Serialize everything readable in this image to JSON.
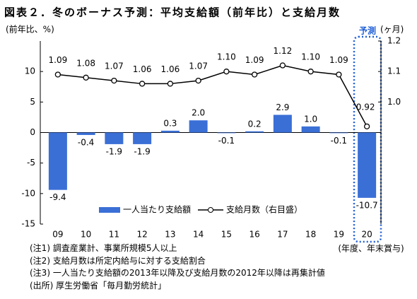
{
  "chart_data": {
    "type": "bar_line",
    "title": "図表２．冬のボーナス予測：平均支給額（前年比）と支給月数",
    "y_label": "(前年比、%)",
    "y2_label": "(ヶ月)",
    "annotations": [
      "予測",
      "(年度、年末賞与)"
    ],
    "categories": [
      "09",
      "10",
      "11",
      "12",
      "13",
      "14",
      "15",
      "16",
      "17",
      "18",
      "19",
      "20"
    ],
    "series": [
      {
        "name": "一人当たり支給額",
        "type": "bar",
        "color": "#3a6fd6",
        "values": [
          -9.4,
          -0.4,
          -1.9,
          -1.9,
          0.3,
          2.0,
          -0.1,
          0.2,
          2.9,
          1.0,
          -0.1,
          -10.7
        ],
        "value_labels": [
          "-9.4",
          "-0.4",
          "-1.9",
          "-1.9",
          "0.3",
          "2.0",
          "-0.1",
          "0.2",
          "2.9",
          "1.0",
          "-0.1",
          "-10.7"
        ]
      },
      {
        "name": "支給月数（右目盛）",
        "type": "line",
        "axis": "y2",
        "color": "#000000",
        "values": [
          1.09,
          1.08,
          1.07,
          1.06,
          1.06,
          1.07,
          1.1,
          1.09,
          1.12,
          1.1,
          1.09,
          0.92
        ],
        "value_labels": [
          "1.09",
          "1.08",
          "1.07",
          "1.06",
          "1.06",
          "1.07",
          "1.10",
          "1.09",
          "1.12",
          "1.10",
          "1.09",
          "0.92"
        ]
      }
    ],
    "ylim": [
      -15,
      15
    ],
    "yticks": [
      10,
      5,
      0,
      -5,
      -10,
      -15
    ],
    "y2lim": [
      0.6,
      1.2
    ],
    "y2ticks": [
      1.2,
      1.1,
      {
        "value": 1,
        "label": "1.0"
      }
    ]
  },
  "notes": [
    "(注1) 調査産業計、事業所規模5人以上",
    "(注2) 支給月数は所定内給与に対する支給割合",
    "(注3) 一人当たり支給額の2013年以降及び支給月数の2012年以降は再集計値",
    "(出所) 厚生労働省「毎月勤労統計」"
  ]
}
